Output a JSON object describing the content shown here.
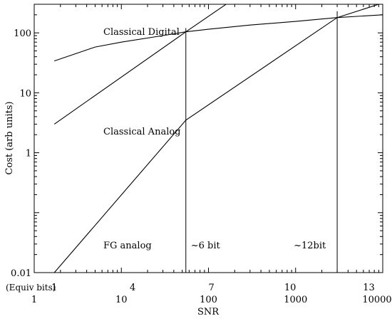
{
  "chart_data": {
    "type": "line",
    "xlabel": "SNR",
    "ylabel": "Cost (arb units)",
    "xscale": "log",
    "yscale": "log",
    "xlim": [
      1,
      10000
    ],
    "ylim": [
      0.01,
      300
    ],
    "x_ticks": [
      "1",
      "10",
      "100",
      "1000",
      "10000"
    ],
    "y_ticks": [
      "0.01",
      "1",
      "10",
      "100"
    ],
    "equiv_bits_label": "(Equiv bits)",
    "equiv_bits_ticks": [
      {
        "label": "1",
        "snr": 1.7
      },
      {
        "label": "4",
        "snr": 13.5
      },
      {
        "label": "7",
        "snr": 108
      },
      {
        "label": "10",
        "snr": 866
      },
      {
        "label": "13",
        "snr": 6930
      }
    ],
    "series": [
      {
        "name": "Classical Digital",
        "x": [
          1.7,
          3,
          5,
          10,
          30,
          55,
          100,
          300,
          1000,
          3000,
          10000
        ],
        "y": [
          34,
          45,
          58,
          70,
          90,
          104,
          115,
          135,
          155,
          180,
          200
        ]
      },
      {
        "name": "Classical Analog",
        "x": [
          1.7,
          55,
          250
        ],
        "y": [
          3,
          104,
          470
        ]
      },
      {
        "name": "FG analog",
        "x": [
          1.7,
          55,
          3000,
          9000
        ],
        "y": [
          0.01,
          3.5,
          180,
          300
        ]
      }
    ],
    "reference_lines": [
      {
        "label": "~6 bit",
        "snr": 55,
        "y_top": 120
      },
      {
        "label": "~12bit",
        "snr": 3000,
        "y_top": 230
      }
    ]
  }
}
